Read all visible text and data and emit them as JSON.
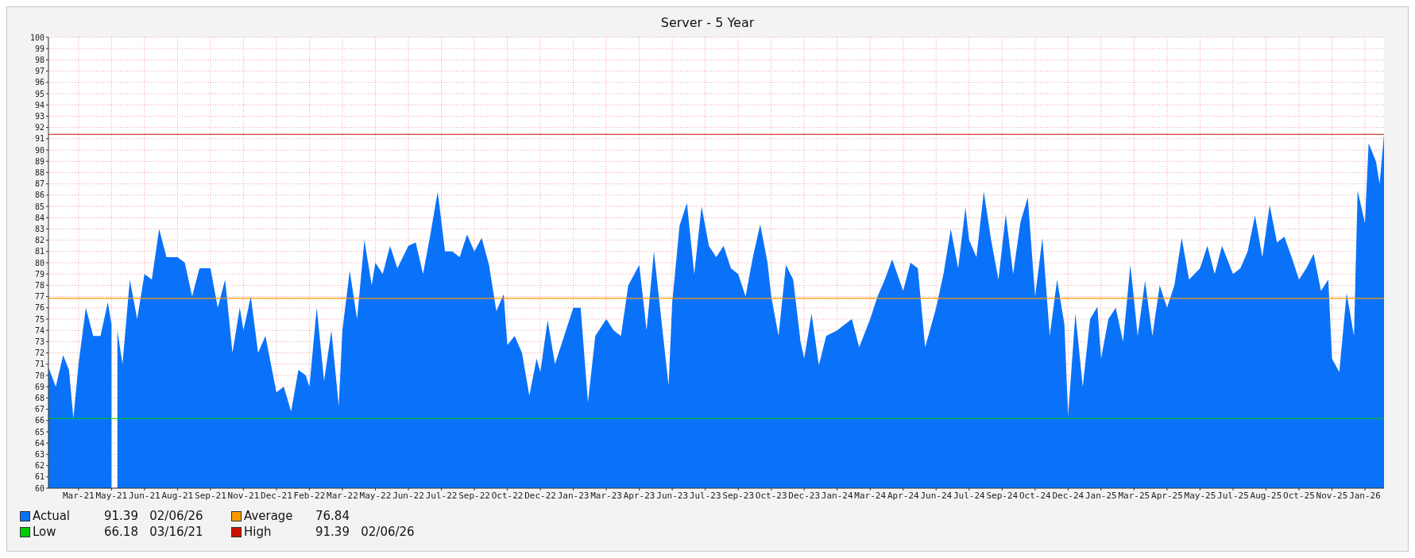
{
  "chart_data": {
    "type": "area",
    "title": "Server - 5 Year",
    "xlim": [
      "2021-02-10",
      "2026-02-06"
    ],
    "xticks": [
      {
        "value": "2021-03-23",
        "label": "Mar-21"
      },
      {
        "value": "2021-05-07",
        "label": "May-21"
      },
      {
        "value": "2021-06-21",
        "label": "Jun-21"
      },
      {
        "value": "2021-08-05",
        "label": "Aug-21"
      },
      {
        "value": "2021-09-19",
        "label": "Sep-21"
      },
      {
        "value": "2021-11-03",
        "label": "Nov-21"
      },
      {
        "value": "2021-12-18",
        "label": "Dec-21"
      },
      {
        "value": "2022-02-01",
        "label": "Feb-22"
      },
      {
        "value": "2022-03-18",
        "label": "Mar-22"
      },
      {
        "value": "2022-05-02",
        "label": "May-22"
      },
      {
        "value": "2022-06-16",
        "label": "Jun-22"
      },
      {
        "value": "2022-07-31",
        "label": "Jul-22"
      },
      {
        "value": "2022-09-14",
        "label": "Sep-22"
      },
      {
        "value": "2022-10-29",
        "label": "Oct-22"
      },
      {
        "value": "2022-12-13",
        "label": "Dec-22"
      },
      {
        "value": "2023-01-27",
        "label": "Jan-23"
      },
      {
        "value": "2023-03-13",
        "label": "Mar-23"
      },
      {
        "value": "2023-04-27",
        "label": "Apr-23"
      },
      {
        "value": "2023-06-11",
        "label": "Jun-23"
      },
      {
        "value": "2023-07-26",
        "label": "Jul-23"
      },
      {
        "value": "2023-09-09",
        "label": "Sep-23"
      },
      {
        "value": "2023-10-24",
        "label": "Oct-23"
      },
      {
        "value": "2023-12-08",
        "label": "Dec-23"
      },
      {
        "value": "2024-01-22",
        "label": "Jan-24"
      },
      {
        "value": "2024-03-07",
        "label": "Mar-24"
      },
      {
        "value": "2024-04-21",
        "label": "Apr-24"
      },
      {
        "value": "2024-06-05",
        "label": "Jun-24"
      },
      {
        "value": "2024-07-20",
        "label": "Jul-24"
      },
      {
        "value": "2024-09-03",
        "label": "Sep-24"
      },
      {
        "value": "2024-10-18",
        "label": "Oct-24"
      },
      {
        "value": "2024-12-02",
        "label": "Dec-24"
      },
      {
        "value": "2025-01-16",
        "label": "Jan-25"
      },
      {
        "value": "2025-03-02",
        "label": "Mar-25"
      },
      {
        "value": "2025-04-16",
        "label": "Apr-25"
      },
      {
        "value": "2025-05-31",
        "label": "May-25"
      },
      {
        "value": "2025-07-15",
        "label": "Jul-25"
      },
      {
        "value": "2025-08-29",
        "label": "Aug-25"
      },
      {
        "value": "2025-10-13",
        "label": "Oct-25"
      },
      {
        "value": "2025-11-27",
        "label": "Nov-25"
      },
      {
        "value": "2026-01-11",
        "label": "Jan-26"
      }
    ],
    "ylim": [
      60,
      100
    ],
    "yticks": [
      60,
      61,
      62,
      63,
      64,
      65,
      66,
      67,
      68,
      69,
      70,
      71,
      72,
      73,
      74,
      75,
      76,
      77,
      78,
      79,
      80,
      81,
      82,
      83,
      84,
      85,
      86,
      87,
      88,
      89,
      90,
      91,
      92,
      93,
      94,
      95,
      96,
      97,
      98,
      99,
      100
    ],
    "grid": true,
    "legend": "bottom left",
    "series": [
      {
        "name": "Actual",
        "color": "#0a72f8",
        "x": [
          "2021-02-10",
          "2021-02-20",
          "2021-03-02",
          "2021-03-10",
          "2021-03-16",
          "2021-03-23",
          "2021-04-02",
          "2021-04-12",
          "2021-04-22",
          "2021-05-02",
          "2021-05-07",
          "2021-05-10",
          "2021-05-15",
          "2021-05-22",
          "2021-06-01",
          "2021-06-11",
          "2021-06-21",
          "2021-07-01",
          "2021-07-11",
          "2021-07-21",
          "2021-08-05",
          "2021-08-15",
          "2021-08-25",
          "2021-09-04",
          "2021-09-19",
          "2021-09-29",
          "2021-10-09",
          "2021-10-19",
          "2021-10-29",
          "2021-11-03",
          "2021-11-13",
          "2021-11-23",
          "2021-12-03",
          "2021-12-18",
          "2021-12-28",
          "2022-01-07",
          "2022-01-17",
          "2022-01-27",
          "2022-02-01",
          "2022-02-11",
          "2022-02-21",
          "2022-03-03",
          "2022-03-13",
          "2022-03-18",
          "2022-03-28",
          "2022-04-07",
          "2022-04-17",
          "2022-04-27",
          "2022-05-02",
          "2022-05-12",
          "2022-05-22",
          "2022-06-01",
          "2022-06-16",
          "2022-06-26",
          "2022-07-06",
          "2022-07-16",
          "2022-07-26",
          "2022-08-05",
          "2022-08-15",
          "2022-08-25",
          "2022-09-04",
          "2022-09-14",
          "2022-09-24",
          "2022-10-04",
          "2022-10-14",
          "2022-10-24",
          "2022-10-29",
          "2022-11-08",
          "2022-11-18",
          "2022-11-28",
          "2022-12-08",
          "2022-12-13",
          "2022-12-23",
          "2023-01-02",
          "2023-01-12",
          "2023-01-27",
          "2023-02-06",
          "2023-02-16",
          "2023-02-26",
          "2023-03-13",
          "2023-03-23",
          "2023-04-02",
          "2023-04-12",
          "2023-04-27",
          "2023-05-07",
          "2023-05-17",
          "2023-05-27",
          "2023-06-06",
          "2023-06-11",
          "2023-06-21",
          "2023-07-01",
          "2023-07-11",
          "2023-07-21",
          "2023-07-31",
          "2023-08-10",
          "2023-08-20",
          "2023-08-30",
          "2023-09-09",
          "2023-09-19",
          "2023-09-29",
          "2023-10-09",
          "2023-10-19",
          "2023-10-24",
          "2023-11-03",
          "2023-11-13",
          "2023-11-23",
          "2023-12-03",
          "2023-12-08",
          "2023-12-18",
          "2023-12-28",
          "2024-01-07",
          "2024-01-22",
          "2024-02-01",
          "2024-02-11",
          "2024-02-21",
          "2024-03-07",
          "2024-03-17",
          "2024-03-27",
          "2024-04-06",
          "2024-04-21",
          "2024-05-01",
          "2024-05-11",
          "2024-05-21",
          "2024-06-05",
          "2024-06-15",
          "2024-06-25",
          "2024-07-05",
          "2024-07-15",
          "2024-07-20",
          "2024-07-30",
          "2024-08-09",
          "2024-08-19",
          "2024-08-29",
          "2024-09-08",
          "2024-09-18",
          "2024-09-28",
          "2024-10-08",
          "2024-10-18",
          "2024-10-28",
          "2024-11-07",
          "2024-11-17",
          "2024-11-27",
          "2024-12-02",
          "2024-12-12",
          "2024-12-22",
          "2025-01-01",
          "2025-01-11",
          "2025-01-16",
          "2025-01-26",
          "2025-02-05",
          "2025-02-15",
          "2025-02-25",
          "2025-03-07",
          "2025-03-17",
          "2025-03-27",
          "2025-04-06",
          "2025-04-16",
          "2025-04-26",
          "2025-05-06",
          "2025-05-16",
          "2025-05-31",
          "2025-06-10",
          "2025-06-20",
          "2025-06-30",
          "2025-07-15",
          "2025-07-25",
          "2025-08-04",
          "2025-08-14",
          "2025-08-24",
          "2025-09-03",
          "2025-09-13",
          "2025-09-23",
          "2025-10-03",
          "2025-10-13",
          "2025-10-23",
          "2025-11-02",
          "2025-11-12",
          "2025-11-22",
          "2025-11-27",
          "2025-12-07",
          "2025-12-17",
          "2025-12-27",
          "2026-01-01",
          "2026-01-11",
          "2026-01-16",
          "2026-01-26",
          "2026-01-31",
          "2026-02-06"
        ],
        "values": [
          70.7,
          69,
          71.8,
          70.5,
          66.18,
          71,
          76,
          73.5,
          73.5,
          76.5,
          74.5,
          null,
          74,
          71,
          78.5,
          75,
          79,
          78.5,
          83,
          80.5,
          80.5,
          80,
          77,
          79.5,
          79.5,
          76,
          78.5,
          72,
          76,
          74,
          77,
          72,
          73.5,
          68.5,
          69,
          66.8,
          70.5,
          70,
          69,
          76,
          69.5,
          74,
          67.3,
          74,
          79.3,
          75,
          82,
          78,
          80,
          79,
          81.5,
          79.5,
          81.5,
          81.8,
          79,
          82.5,
          86.3,
          81,
          81,
          80.5,
          82.5,
          81,
          82.2,
          79.8,
          75.7,
          77.2,
          72.7,
          73.5,
          72,
          68.2,
          71.5,
          70.3,
          74.9,
          71,
          73,
          76,
          76,
          67.6,
          73.5,
          75,
          74,
          73.5,
          78,
          79.8,
          74,
          81,
          75,
          69.1,
          76.5,
          83.3,
          85.3,
          79,
          85,
          81.5,
          80.5,
          81.5,
          79.5,
          79,
          77,
          80.5,
          83.4,
          80,
          77,
          73.5,
          79.8,
          78.5,
          73,
          71.5,
          75.5,
          70.9,
          73.5,
          74,
          74.5,
          75,
          72.5,
          75,
          77,
          78.5,
          80.3,
          77.5,
          80,
          79.5,
          72.5,
          76,
          79,
          83,
          79.5,
          84.9,
          82,
          80.5,
          86.3,
          82,
          78.5,
          84.3,
          79,
          83.6,
          85.8,
          77,
          82.2,
          73.5,
          78.5,
          74.5,
          66.4,
          75.5,
          69,
          75,
          76.1,
          71.5,
          75,
          76,
          73,
          79.8,
          73.5,
          78.4,
          73.5,
          78,
          76,
          78,
          82.2,
          78.5,
          79.5,
          81.5,
          79,
          81.5,
          79,
          79.5,
          81,
          84.2,
          80.5,
          85.1,
          81.8,
          82.3,
          80.5,
          78.5,
          79.5,
          80.8,
          77.5,
          78.5,
          71.5,
          70.3,
          77.3,
          73.5,
          86.4,
          83.5,
          90.6,
          89,
          87,
          91.39
        ]
      }
    ],
    "ref_lines": [
      {
        "axis": "y",
        "value": 76.84,
        "label": "Average",
        "color": "#ff9900"
      },
      {
        "axis": "y",
        "value": 66.18,
        "label": "Low",
        "color": "#00cc00"
      },
      {
        "axis": "y",
        "value": 91.39,
        "label": "High",
        "color": "#cc1100"
      }
    ],
    "annotations": [
      "91.39   02/06/26",
      "76.84",
      "66.18   03/16/21",
      "91.39   02/06/26"
    ]
  }
}
